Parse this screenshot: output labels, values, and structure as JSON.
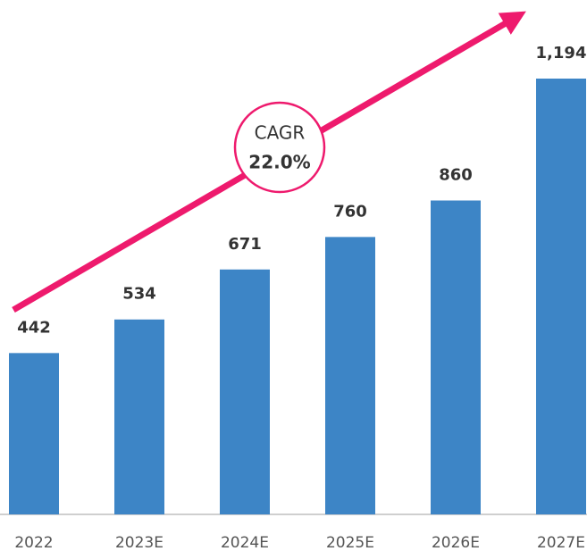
{
  "chart_data": {
    "type": "bar",
    "categories": [
      "2022",
      "2023E",
      "2024E",
      "2025E",
      "2026E",
      "2027E"
    ],
    "values": [
      442,
      534,
      671,
      760,
      860,
      1194
    ],
    "value_labels": [
      "442",
      "534",
      "671",
      "760",
      "860",
      "1,194"
    ],
    "color": "#3d85c6",
    "annotation": {
      "label": "CAGR",
      "value": "22.0%",
      "color": "#ee1a6d"
    }
  }
}
